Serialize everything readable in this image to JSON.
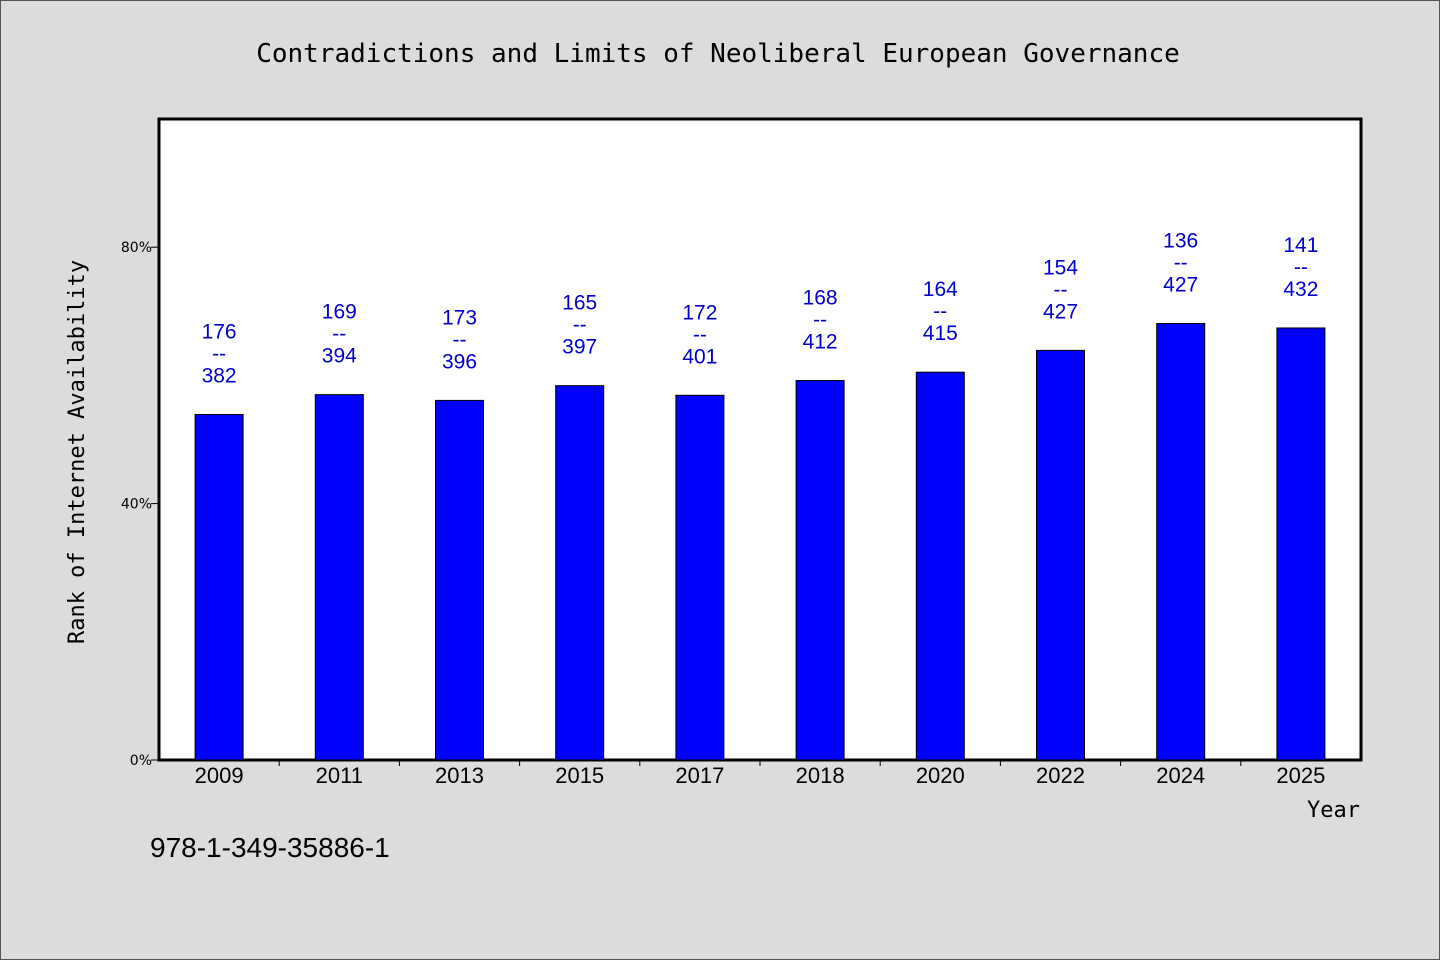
{
  "footer": {
    "code": "978-1-349-35886-1"
  },
  "chart_data": {
    "type": "bar",
    "title": "Contradictions and Limits of Neoliberal European Governance",
    "xlabel": "Year",
    "ylabel": "Rank of Internet Availability",
    "ylim": [
      0,
      100
    ],
    "yticks": [
      0,
      40,
      80
    ],
    "ytick_labels": [
      "0%",
      "40%",
      "80%"
    ],
    "grid": false,
    "colors": {
      "bar": "#0000ff",
      "label": "#0000cc",
      "plot_bg": "#ffffff",
      "page_bg": "#dcdcdc"
    },
    "categories": [
      "2009",
      "2011",
      "2013",
      "2015",
      "2017",
      "2018",
      "2020",
      "2022",
      "2024",
      "2025"
    ],
    "values": [
      53.9,
      57.0,
      56.1,
      58.4,
      56.9,
      59.2,
      60.5,
      63.9,
      68.1,
      67.4
    ],
    "labels": [
      {
        "top": "176",
        "sep": "--",
        "bottom": "382"
      },
      {
        "top": "169",
        "sep": "--",
        "bottom": "394"
      },
      {
        "top": "173",
        "sep": "--",
        "bottom": "396"
      },
      {
        "top": "165",
        "sep": "--",
        "bottom": "397"
      },
      {
        "top": "172",
        "sep": "--",
        "bottom": "401"
      },
      {
        "top": "168",
        "sep": "--",
        "bottom": "412"
      },
      {
        "top": "164",
        "sep": "--",
        "bottom": "415"
      },
      {
        "top": "154",
        "sep": "--",
        "bottom": "427"
      },
      {
        "top": "136",
        "sep": "--",
        "bottom": "427"
      },
      {
        "top": "141",
        "sep": "--",
        "bottom": "432"
      }
    ]
  }
}
